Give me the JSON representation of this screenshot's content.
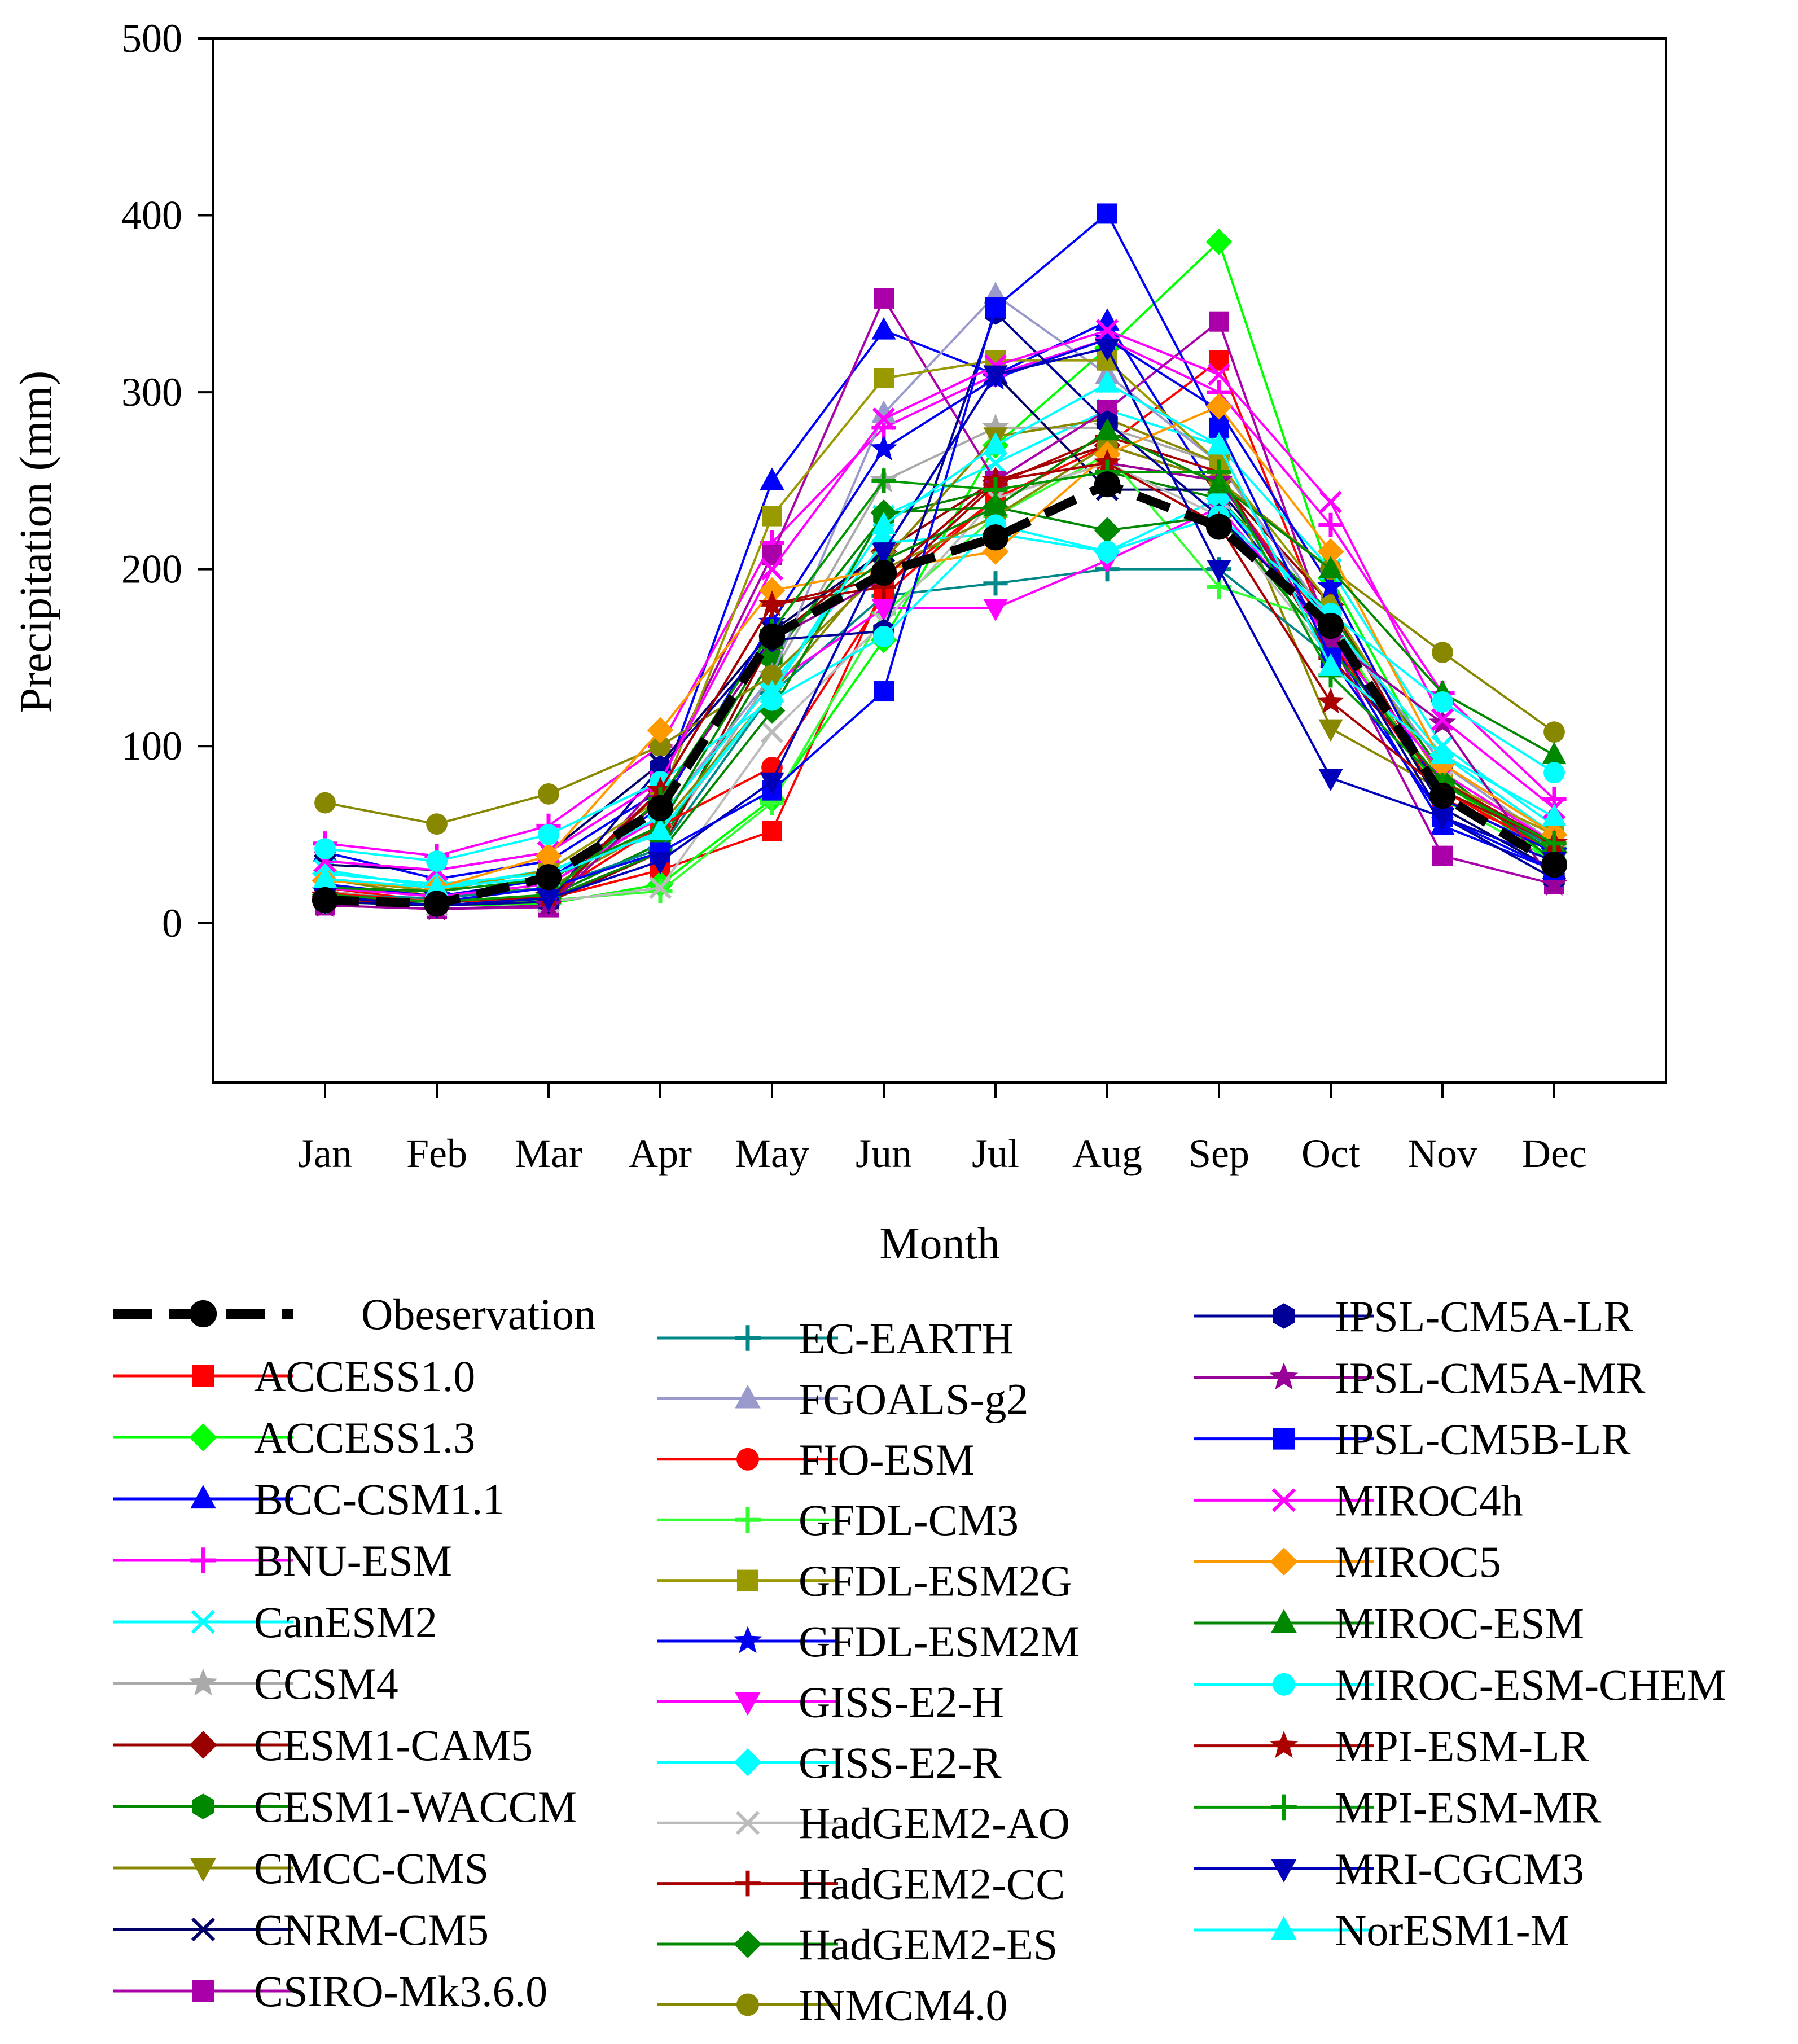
{
  "chart_data": {
    "type": "line",
    "title": "",
    "xlabel": "Month",
    "ylabel": "Precipitation (mm)",
    "ylim": [
      -90,
      500
    ],
    "yticks": [
      0,
      100,
      200,
      300,
      400,
      500
    ],
    "categories": [
      "Jan",
      "Feb",
      "Mar",
      "Apr",
      "May",
      "Jun",
      "Jul",
      "Aug",
      "Sep",
      "Oct",
      "Nov",
      "Dec"
    ],
    "observation": {
      "name": "Obeservation",
      "values": [
        13,
        11,
        26,
        65,
        162,
        198,
        218,
        248,
        224,
        168,
        72,
        33
      ],
      "color": "#000000",
      "marker": "circle",
      "dash": true
    },
    "series": [
      {
        "name": "ACCESS1.0",
        "values": [
          20,
          12,
          14,
          30,
          52,
          190,
          240,
          270,
          318,
          160,
          70,
          45
        ],
        "color": "#ff0000",
        "marker": "square"
      },
      {
        "name": "ACCESS1.3",
        "values": [
          12,
          10,
          11,
          22,
          70,
          160,
          270,
          325,
          385,
          195,
          80,
          35
        ],
        "color": "#00ff00",
        "marker": "diamond"
      },
      {
        "name": "BCC-CSM1.1",
        "values": [
          40,
          25,
          35,
          75,
          250,
          335,
          310,
          340,
          240,
          160,
          55,
          30
        ],
        "color": "#0000ff",
        "marker": "triangle-up"
      },
      {
        "name": "BNU-ESM",
        "values": [
          45,
          38,
          55,
          100,
          215,
          280,
          310,
          330,
          300,
          225,
          130,
          70
        ],
        "color": "#ff00ff",
        "marker": "plus"
      },
      {
        "name": "CanESM2",
        "values": [
          30,
          20,
          30,
          50,
          130,
          230,
          260,
          290,
          270,
          200,
          100,
          55
        ],
        "color": "#00ffff",
        "marker": "x"
      },
      {
        "name": "CCSM4",
        "values": [
          18,
          12,
          15,
          45,
          140,
          250,
          280,
          280,
          260,
          170,
          90,
          45
        ],
        "color": "#aaaaaa",
        "marker": "star"
      },
      {
        "name": "CESM1-CAM5",
        "values": [
          15,
          10,
          12,
          40,
          160,
          210,
          250,
          270,
          250,
          180,
          70,
          40
        ],
        "color": "#990000",
        "marker": "diamond"
      },
      {
        "name": "CESM1-WACCM",
        "values": [
          14,
          12,
          15,
          45,
          150,
          230,
          245,
          255,
          240,
          175,
          85,
          35
        ],
        "color": "#008800",
        "marker": "hexagon"
      },
      {
        "name": "CMCC-CMS",
        "values": [
          25,
          15,
          20,
          55,
          130,
          205,
          275,
          285,
          260,
          110,
          75,
          40
        ],
        "color": "#888800",
        "marker": "triangle-down"
      },
      {
        "name": "CNRM-CM5",
        "values": [
          33,
          30,
          40,
          90,
          165,
          210,
          310,
          245,
          245,
          170,
          65,
          30
        ],
        "color": "#000066",
        "marker": "x"
      },
      {
        "name": "CSIRO-Mk3.6.0",
        "values": [
          10,
          8,
          9,
          80,
          208,
          353,
          250,
          290,
          340,
          160,
          38,
          22
        ],
        "color": "#aa00aa",
        "marker": "square"
      },
      {
        "name": "EC-EARTH",
        "values": [
          16,
          14,
          20,
          42,
          130,
          185,
          192,
          200,
          200,
          150,
          80,
          42
        ],
        "color": "#008888",
        "marker": "plus"
      },
      {
        "name": "FGOALS-g2",
        "values": [
          20,
          15,
          25,
          60,
          140,
          288,
          355,
          310,
          260,
          170,
          90,
          45
        ],
        "color": "#9999cc",
        "marker": "triangle-up"
      },
      {
        "name": "FIO-ESM",
        "values": [
          17,
          12,
          15,
          55,
          88,
          185,
          240,
          260,
          250,
          165,
          75,
          40
        ],
        "color": "#ff0000",
        "marker": "circle"
      },
      {
        "name": "GFDL-CM3",
        "values": [
          12,
          10,
          13,
          18,
          68,
          175,
          230,
          265,
          190,
          170,
          70,
          35
        ],
        "color": "#33ff33",
        "marker": "plus"
      },
      {
        "name": "GFDL-ESM2G",
        "values": [
          25,
          18,
          30,
          70,
          230,
          308,
          318,
          318,
          260,
          180,
          80,
          50
        ],
        "color": "#999900",
        "marker": "square"
      },
      {
        "name": "GFDL-ESM2M",
        "values": [
          22,
          15,
          25,
          65,
          170,
          268,
          308,
          330,
          290,
          190,
          70,
          40
        ],
        "color": "#0000ee",
        "marker": "star"
      },
      {
        "name": "GISS-E2-H",
        "values": [
          20,
          15,
          22,
          60,
          135,
          178,
          178,
          205,
          235,
          160,
          85,
          45
        ],
        "color": "#ff00ff",
        "marker": "triangle-down"
      },
      {
        "name": "GISS-E2-R",
        "values": [
          28,
          22,
          28,
          60,
          135,
          215,
          220,
          210,
          240,
          170,
          95,
          50
        ],
        "color": "#00ffff",
        "marker": "diamond"
      },
      {
        "name": "HadGEM2-AO",
        "values": [
          15,
          10,
          12,
          20,
          108,
          170,
          240,
          260,
          230,
          150,
          80,
          40
        ],
        "color": "#bbbbbb",
        "marker": "x"
      },
      {
        "name": "HadGEM2-CC",
        "values": [
          14,
          10,
          12,
          75,
          180,
          190,
          248,
          275,
          255,
          150,
          80,
          45
        ],
        "color": "#aa0000",
        "marker": "plus"
      },
      {
        "name": "HadGEM2-ES",
        "values": [
          16,
          10,
          14,
          40,
          120,
          232,
          235,
          222,
          230,
          155,
          80,
          40
        ],
        "color": "#008800",
        "marker": "diamond"
      },
      {
        "name": "INMCM4.0",
        "values": [
          68,
          56,
          73,
          100,
          140,
          200,
          230,
          270,
          250,
          200,
          153,
          108
        ],
        "color": "#888800",
        "marker": "circle"
      },
      {
        "name": "IPSL-CM5A-LR",
        "values": [
          12,
          10,
          12,
          88,
          160,
          165,
          345,
          283,
          230,
          165,
          60,
          25
        ],
        "color": "#000099",
        "marker": "hexagon"
      },
      {
        "name": "IPSL-CM5A-MR",
        "values": [
          10,
          8,
          10,
          70,
          160,
          195,
          250,
          260,
          250,
          160,
          113,
          22
        ],
        "color": "#990099",
        "marker": "star"
      },
      {
        "name": "IPSL-CM5B-LR",
        "values": [
          15,
          12,
          20,
          40,
          75,
          131,
          348,
          401,
          280,
          150,
          60,
          30
        ],
        "color": "#0000ff",
        "marker": "square"
      },
      {
        "name": "MIROC4h",
        "values": [
          35,
          30,
          40,
          80,
          200,
          285,
          315,
          335,
          310,
          238,
          115,
          65
        ],
        "color": "#ff00ff",
        "marker": "x"
      },
      {
        "name": "MIROC5",
        "values": [
          24,
          20,
          38,
          109,
          188,
          200,
          210,
          265,
          292,
          210,
          90,
          50
        ],
        "color": "#ff9900",
        "marker": "diamond"
      },
      {
        "name": "MIROC-ESM",
        "values": [
          20,
          18,
          25,
          55,
          160,
          205,
          235,
          278,
          248,
          200,
          130,
          95
        ],
        "color": "#008800",
        "marker": "triangle-up"
      },
      {
        "name": "MIROC-ESM-CHEM",
        "values": [
          42,
          35,
          50,
          80,
          126,
          162,
          225,
          210,
          230,
          175,
          125,
          85
        ],
        "color": "#00ffff",
        "marker": "circle"
      },
      {
        "name": "MPI-ESM-LR",
        "values": [
          15,
          12,
          15,
          75,
          180,
          195,
          250,
          260,
          225,
          125,
          75,
          45
        ],
        "color": "#aa0000",
        "marker": "star"
      },
      {
        "name": "MPI-ESM-MR",
        "values": [
          16,
          12,
          16,
          70,
          165,
          250,
          245,
          255,
          255,
          140,
          78,
          45
        ],
        "color": "#009900",
        "marker": "plus"
      },
      {
        "name": "MRI-CGCM3",
        "values": [
          15,
          10,
          14,
          35,
          80,
          210,
          310,
          325,
          200,
          82,
          60,
          35
        ],
        "color": "#0000bb",
        "marker": "triangle-down"
      },
      {
        "name": "NorESM1-M",
        "values": [
          25,
          20,
          26,
          52,
          130,
          225,
          270,
          305,
          270,
          145,
          95,
          60
        ],
        "color": "#00ffff",
        "marker": "triangle-up"
      }
    ]
  }
}
